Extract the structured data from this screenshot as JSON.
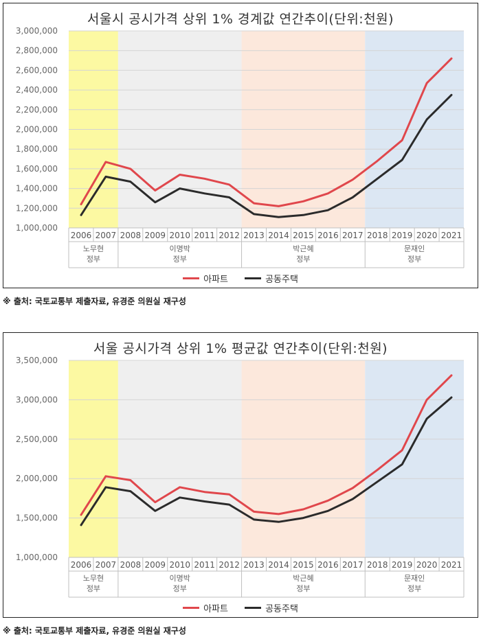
{
  "colors": {
    "apartment": "#e0474c",
    "multi_unit": "#2b2b2b",
    "era_roh": "#fcf9a2",
    "era_lee": "#efefef",
    "era_park": "#fce8dc",
    "era_moon": "#dce7f3"
  },
  "chart_data": [
    {
      "type": "line",
      "title": "서울시 공시가격 상위 1% 경계값  연간추이(단위:천원)",
      "categories": [
        "2006",
        "2007",
        "2008",
        "2009",
        "2010",
        "2011",
        "2012",
        "2013",
        "2014",
        "2015",
        "2016",
        "2017",
        "2018",
        "2019",
        "2020",
        "2021"
      ],
      "ylim": [
        1000000,
        3000000
      ],
      "yticks": [
        1000000,
        1200000,
        1400000,
        1600000,
        1800000,
        2000000,
        2200000,
        2400000,
        2600000,
        2800000,
        3000000
      ],
      "ytick_labels": [
        "1,000,000",
        "1,200,000",
        "1,400,000",
        "1,600,000",
        "1,800,000",
        "2,000,000",
        "2,200,000",
        "2,400,000",
        "2,600,000",
        "2,800,000",
        "3,000,000"
      ],
      "eras": [
        {
          "lines": [
            "노무현",
            "정부"
          ],
          "start": 0,
          "end": 1,
          "color_key": "era_roh"
        },
        {
          "lines": [
            "이명박",
            "정부"
          ],
          "start": 2,
          "end": 6,
          "color_key": "era_lee"
        },
        {
          "lines": [
            "박근혜",
            "정부"
          ],
          "start": 7,
          "end": 11,
          "color_key": "era_park"
        },
        {
          "lines": [
            "문재인",
            "정부"
          ],
          "start": 12,
          "end": 15,
          "color_key": "era_moon"
        }
      ],
      "series": [
        {
          "name": "아파트",
          "color_key": "apartment",
          "values": [
            1240000,
            1670000,
            1600000,
            1380000,
            1540000,
            1500000,
            1440000,
            1250000,
            1220000,
            1270000,
            1350000,
            1490000,
            1680000,
            1890000,
            2470000,
            2720000
          ]
        },
        {
          "name": "공동주택",
          "color_key": "multi_unit",
          "values": [
            1130000,
            1520000,
            1470000,
            1260000,
            1400000,
            1350000,
            1310000,
            1140000,
            1110000,
            1130000,
            1180000,
            1310000,
            1500000,
            1690000,
            2100000,
            2350000
          ]
        }
      ],
      "source": "※ 출처: 국토교통부 제출자료, 유경준 의원실 재구성"
    },
    {
      "type": "line",
      "title": "서울 공시가격 상위 1% 평균값  연간추이(단위:천원)",
      "categories": [
        "2006",
        "2007",
        "2008",
        "2009",
        "2010",
        "2011",
        "2012",
        "2013",
        "2014",
        "2015",
        "2016",
        "2017",
        "2018",
        "2019",
        "2020",
        "2021"
      ],
      "ylim": [
        1000000,
        3500000
      ],
      "yticks": [
        1000000,
        1500000,
        2000000,
        2500000,
        3000000,
        3500000
      ],
      "ytick_labels": [
        "1,000,000",
        "1,500,000",
        "2,000,000",
        "2,500,000",
        "3,000,000",
        "3,500,000"
      ],
      "eras": [
        {
          "lines": [
            "노무현",
            "정부"
          ],
          "start": 0,
          "end": 1,
          "color_key": "era_roh"
        },
        {
          "lines": [
            "이명박",
            "정부"
          ],
          "start": 2,
          "end": 6,
          "color_key": "era_lee"
        },
        {
          "lines": [
            "박근혜",
            "정부"
          ],
          "start": 7,
          "end": 11,
          "color_key": "era_park"
        },
        {
          "lines": [
            "문재인",
            "정부"
          ],
          "start": 12,
          "end": 15,
          "color_key": "era_moon"
        }
      ],
      "series": [
        {
          "name": "아파트",
          "color_key": "apartment",
          "values": [
            1540000,
            2030000,
            1980000,
            1700000,
            1890000,
            1830000,
            1800000,
            1580000,
            1550000,
            1610000,
            1720000,
            1880000,
            2110000,
            2360000,
            3000000,
            3310000
          ]
        },
        {
          "name": "공동주택",
          "color_key": "multi_unit",
          "values": [
            1410000,
            1890000,
            1840000,
            1590000,
            1760000,
            1710000,
            1670000,
            1480000,
            1450000,
            1500000,
            1590000,
            1740000,
            1960000,
            2180000,
            2760000,
            3030000
          ]
        }
      ],
      "source": "※ 출처: 국토교통부 제출자료, 유경준 의원실 재구성"
    }
  ]
}
